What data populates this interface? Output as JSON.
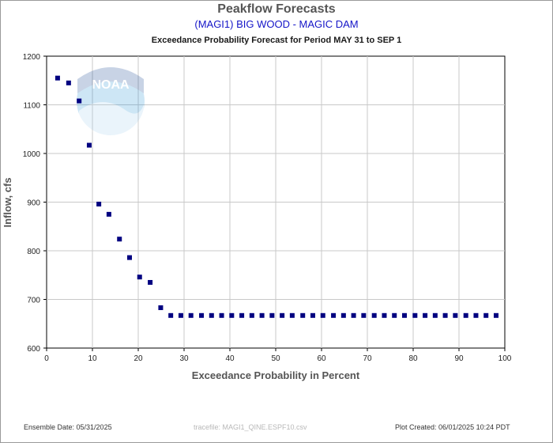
{
  "header": {
    "title": "Peakflow Forecasts",
    "station": "(MAGI1) BIG WOOD - MAGIC DAM",
    "period": "Exceedance Probability Forecast for Period MAY 31 to SEP 1"
  },
  "footer": {
    "ensemble_date": "Ensemble Date: 05/31/2025",
    "tracefile": "tracefile: MAGI1_QINE.ESPF10.csv",
    "plot_created": "Plot Created: 06/01/2025 10:24 PDT"
  },
  "logo_text": "NOAA",
  "chart_data": {
    "type": "scatter",
    "title": "",
    "xlabel": "Exceedance Probability in Percent",
    "ylabel": "Inflow, cfs",
    "xlim": [
      0,
      100
    ],
    "ylim": [
      600,
      1200
    ],
    "xticks": [
      0,
      10,
      20,
      30,
      40,
      50,
      60,
      70,
      80,
      90,
      100
    ],
    "yticks": [
      600,
      700,
      800,
      900,
      1000,
      1100,
      1200
    ],
    "grid": true,
    "legend": "none",
    "marker_color": "#000080",
    "series": [
      {
        "x": [
          2.4,
          4.8,
          7.1,
          9.3,
          11.4,
          13.6,
          15.9,
          18.1,
          20.3,
          22.6,
          24.9,
          27.1,
          29.3,
          31.5,
          33.8,
          36.0,
          38.2,
          40.4,
          42.6,
          44.8,
          47.0,
          49.2,
          51.4,
          53.6,
          55.9,
          58.1,
          60.3,
          62.6,
          64.8,
          67.0,
          69.2,
          71.5,
          73.7,
          75.9,
          78.1,
          80.4,
          82.6,
          84.8,
          87.0,
          89.2,
          91.5,
          93.7,
          95.9,
          98.1
        ],
        "y": [
          1155,
          1145,
          1108,
          1017,
          896,
          875,
          824,
          786,
          746,
          735,
          683,
          667,
          667,
          667,
          667,
          667,
          667,
          667,
          667,
          667,
          667,
          667,
          667,
          667,
          667,
          667,
          667,
          667,
          667,
          667,
          667,
          667,
          667,
          667,
          667,
          667,
          667,
          667,
          667,
          667,
          667,
          667,
          667,
          667
        ]
      }
    ]
  }
}
